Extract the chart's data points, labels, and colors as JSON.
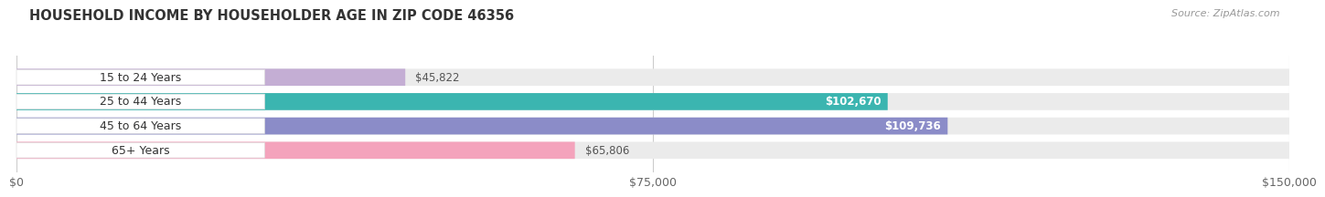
{
  "title": "HOUSEHOLD INCOME BY HOUSEHOLDER AGE IN ZIP CODE 46356",
  "source": "Source: ZipAtlas.com",
  "categories": [
    "15 to 24 Years",
    "25 to 44 Years",
    "45 to 64 Years",
    "65+ Years"
  ],
  "values": [
    45822,
    102670,
    109736,
    65806
  ],
  "bar_colors": [
    "#c4aed4",
    "#3bb5b0",
    "#8b8cc8",
    "#f4a3bc"
  ],
  "bar_bg_color": "#ebebeb",
  "label_bg_color": "#ffffff",
  "value_labels": [
    "$45,822",
    "$102,670",
    "$109,736",
    "$65,806"
  ],
  "value_colors_inside": [
    "white",
    "white",
    "white",
    "#555555"
  ],
  "xmax": 150000,
  "xticks": [
    0,
    75000,
    150000
  ],
  "xtick_labels": [
    "$0",
    "$75,000",
    "$150,000"
  ],
  "background_color": "#ffffff",
  "title_fontsize": 10.5,
  "label_fontsize": 9,
  "value_fontsize": 8.5,
  "source_fontsize": 8,
  "bar_height": 0.7,
  "value_inside_threshold": 0.55
}
